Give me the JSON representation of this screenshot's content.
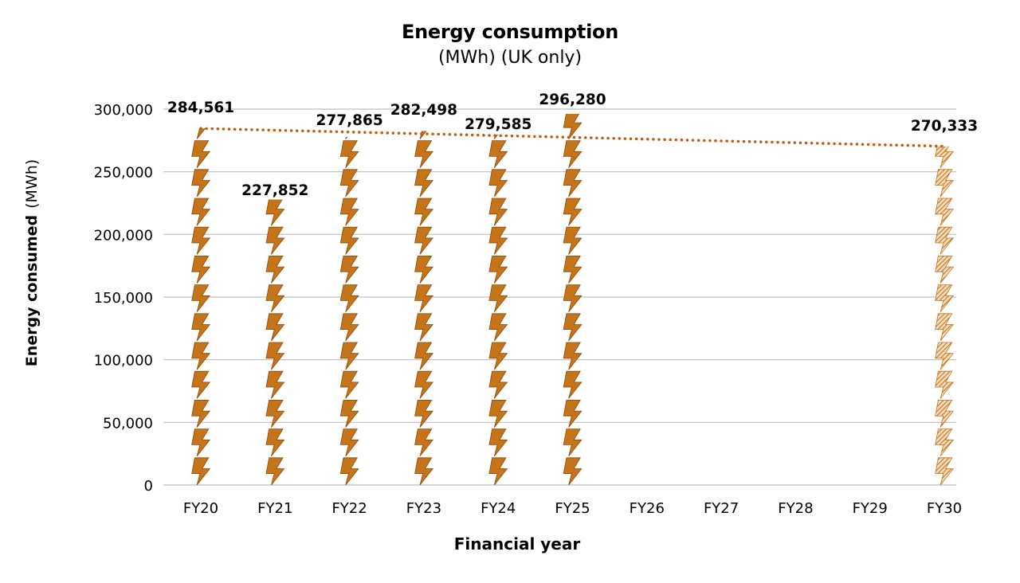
{
  "chart_data": {
    "type": "bar",
    "title": "Energy consumption",
    "subtitle": "(MWh) (UK only)",
    "xlabel": "Financial year",
    "ylabel_bold": "Energy consumed",
    "ylabel_unit": "(MWh)",
    "categories": [
      "FY20",
      "FY21",
      "FY22",
      "FY23",
      "FY24",
      "FY25",
      "FY26",
      "FY27",
      "FY28",
      "FY29",
      "FY30"
    ],
    "values": [
      284561,
      227852,
      277865,
      282498,
      279585,
      296280,
      null,
      null,
      null,
      null,
      270333
    ],
    "value_labels": [
      "284,561",
      "227,852",
      "277,865",
      "282,498",
      "279,585",
      "296,280",
      "",
      "",
      "",
      "",
      "270,333"
    ],
    "target_index": 10,
    "yticks": [
      0,
      50000,
      100000,
      150000,
      200000,
      250000,
      300000
    ],
    "ytick_labels": [
      "0",
      "50,000",
      "100,000",
      "150,000",
      "200,000",
      "250,000",
      "300,000"
    ],
    "ylim": [
      0,
      300000
    ],
    "trendline": {
      "style": "dotted",
      "from_index": 0,
      "to_index": 10,
      "from_value": 284561,
      "to_value": 270333
    },
    "grid": true,
    "legend": "none"
  },
  "colors": {
    "bar": "#c6741a",
    "bar_stroke": "#8a4a08",
    "trend": "#c55a11",
    "grid": "#bfbfbf",
    "text": "#000000"
  }
}
